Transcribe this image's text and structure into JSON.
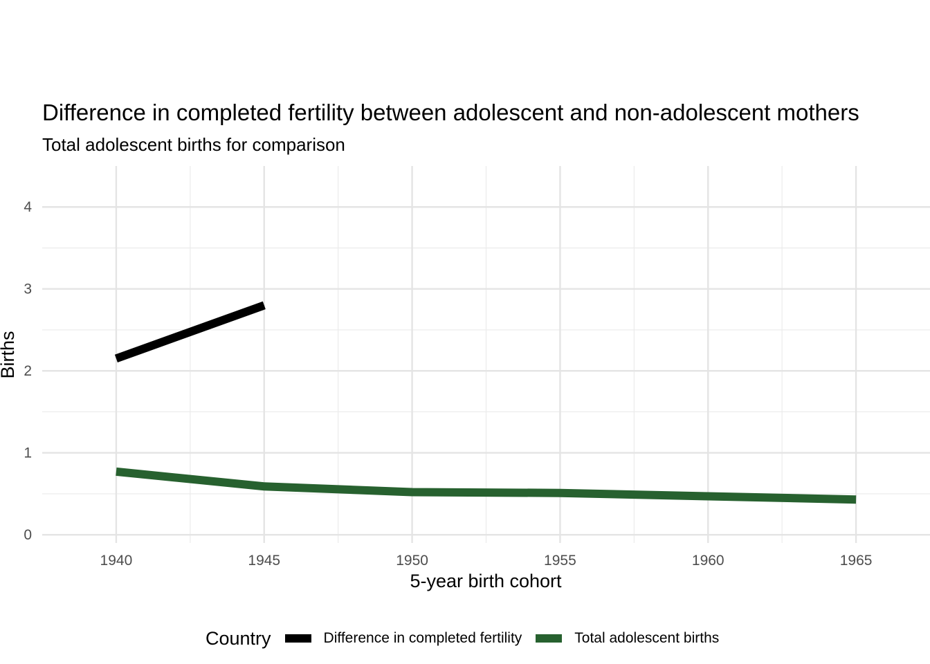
{
  "chart_data": {
    "type": "line",
    "title": "Difference in completed fertility between adolescent and non-adolescent mothers",
    "subtitle": "Total adolescent births for comparison",
    "xlabel": "5-year birth cohort",
    "ylabel": "Births",
    "xlim": [
      1937.5,
      1967.5
    ],
    "ylim": [
      -0.1,
      4.5
    ],
    "xticks": [
      1940,
      1945,
      1950,
      1955,
      1960,
      1965
    ],
    "yticks": [
      0,
      1,
      2,
      3,
      4
    ],
    "grid": true,
    "legend": {
      "title": "Country",
      "position": "bottom"
    },
    "series": [
      {
        "name": "Difference in completed fertility",
        "color": "#000000",
        "x": [
          1940,
          1945
        ],
        "values": [
          2.15,
          2.8
        ]
      },
      {
        "name": "Total adolescent births",
        "color": "#27612f",
        "x": [
          1940,
          1945,
          1950,
          1955,
          1960,
          1965
        ],
        "values": [
          0.77,
          0.59,
          0.52,
          0.51,
          0.47,
          0.43
        ]
      }
    ]
  }
}
